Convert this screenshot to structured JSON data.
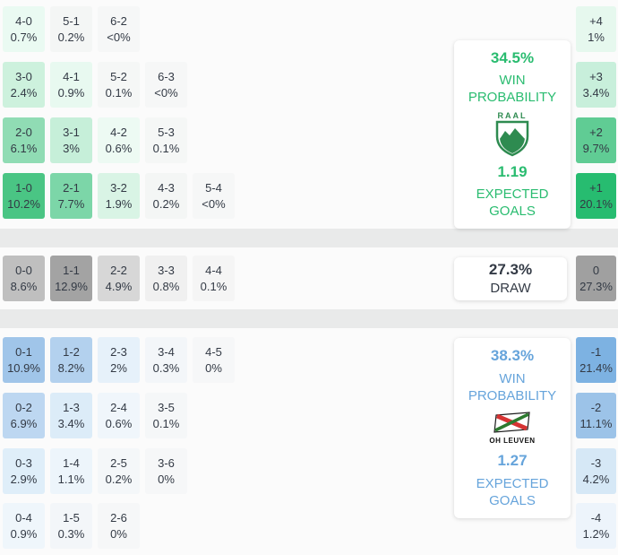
{
  "teams": {
    "home": "RAAL",
    "away": "OH LEUVEN"
  },
  "labels": {
    "win": "WIN",
    "probability": "PROBABILITY",
    "expected": "EXPECTED",
    "goals": "GOALS",
    "draw": "DRAW"
  },
  "colors": {
    "home_accent": "#2abc70",
    "away_accent": "#66a4db",
    "draw_accent": "#333a45",
    "divider": "#e9eaea",
    "cell_text": "#333a45"
  },
  "chart_data": {
    "type": "heatmap",
    "description": "Correct score probability matrix (home-away scorelines) with win/draw probability panels and goal-difference distribution column",
    "sections": {
      "home_win": {
        "team": "RAAL",
        "win_probability": 34.5,
        "win_probability_label": "34.5%",
        "expected_goals": 1.19,
        "expected_goals_label": "1.19",
        "cells": [
          {
            "score": "4-0",
            "pct": "0.7%",
            "value": 0.7,
            "row": 0,
            "col": 0,
            "bg": "#eafaf2"
          },
          {
            "score": "5-1",
            "pct": "0.2%",
            "value": 0.2,
            "row": 0,
            "col": 1,
            "bg": "#f4f6f5"
          },
          {
            "score": "6-2",
            "pct": "<0%",
            "value": 0,
            "row": 0,
            "col": 2,
            "bg": "#f6f7f7"
          },
          {
            "score": "3-0",
            "pct": "2.4%",
            "value": 2.4,
            "row": 1,
            "col": 0,
            "bg": "#cdf1dd"
          },
          {
            "score": "4-1",
            "pct": "0.9%",
            "value": 0.9,
            "row": 1,
            "col": 1,
            "bg": "#e8f9f0"
          },
          {
            "score": "5-2",
            "pct": "0.1%",
            "value": 0.1,
            "row": 1,
            "col": 2,
            "bg": "#f5f7f6"
          },
          {
            "score": "6-3",
            "pct": "<0%",
            "value": 0,
            "row": 1,
            "col": 3,
            "bg": "#f6f7f7"
          },
          {
            "score": "2-0",
            "pct": "6.1%",
            "value": 6.1,
            "row": 2,
            "col": 0,
            "bg": "#90dcb4"
          },
          {
            "score": "3-1",
            "pct": "3%",
            "value": 3,
            "row": 2,
            "col": 1,
            "bg": "#c6efd9"
          },
          {
            "score": "4-2",
            "pct": "0.6%",
            "value": 0.6,
            "row": 2,
            "col": 2,
            "bg": "#edfaf3"
          },
          {
            "score": "5-3",
            "pct": "0.1%",
            "value": 0.1,
            "row": 2,
            "col": 3,
            "bg": "#f5f7f6"
          },
          {
            "score": "1-0",
            "pct": "10.2%",
            "value": 10.2,
            "row": 3,
            "col": 0,
            "bg": "#4ac584"
          },
          {
            "score": "2-1",
            "pct": "7.7%",
            "value": 7.7,
            "row": 3,
            "col": 1,
            "bg": "#7cd6a8"
          },
          {
            "score": "3-2",
            "pct": "1.9%",
            "value": 1.9,
            "row": 3,
            "col": 2,
            "bg": "#d9f4e5"
          },
          {
            "score": "4-3",
            "pct": "0.2%",
            "value": 0.2,
            "row": 3,
            "col": 3,
            "bg": "#f4f6f5"
          },
          {
            "score": "5-4",
            "pct": "<0%",
            "value": 0,
            "row": 3,
            "col": 4,
            "bg": "#f6f7f7"
          }
        ]
      },
      "draw": {
        "probability": 27.3,
        "probability_label": "27.3%",
        "cells": [
          {
            "score": "0-0",
            "pct": "8.6%",
            "value": 8.6,
            "row": 0,
            "col": 0,
            "bg": "#bfbfbf"
          },
          {
            "score": "1-1",
            "pct": "12.9%",
            "value": 12.9,
            "row": 0,
            "col": 1,
            "bg": "#a3a3a3"
          },
          {
            "score": "2-2",
            "pct": "4.9%",
            "value": 4.9,
            "row": 0,
            "col": 2,
            "bg": "#d7d7d7"
          },
          {
            "score": "3-3",
            "pct": "0.8%",
            "value": 0.8,
            "row": 0,
            "col": 3,
            "bg": "#f0f0f0"
          },
          {
            "score": "4-4",
            "pct": "0.1%",
            "value": 0.1,
            "row": 0,
            "col": 4,
            "bg": "#f5f5f5"
          }
        ]
      },
      "away_win": {
        "team": "OH LEUVEN",
        "win_probability": 38.3,
        "win_probability_label": "38.3%",
        "expected_goals": 1.27,
        "expected_goals_label": "1.27",
        "cells": [
          {
            "score": "0-1",
            "pct": "10.9%",
            "value": 10.9,
            "row": 0,
            "col": 0,
            "bg": "#a0c5e9"
          },
          {
            "score": "1-2",
            "pct": "8.2%",
            "value": 8.2,
            "row": 0,
            "col": 1,
            "bg": "#b3d1ee"
          },
          {
            "score": "2-3",
            "pct": "2%",
            "value": 2,
            "row": 0,
            "col": 2,
            "bg": "#e6f1fa"
          },
          {
            "score": "3-4",
            "pct": "0.3%",
            "value": 0.3,
            "row": 0,
            "col": 3,
            "bg": "#f3f6f9"
          },
          {
            "score": "4-5",
            "pct": "0%",
            "value": 0,
            "row": 0,
            "col": 4,
            "bg": "#f6f7f8"
          },
          {
            "score": "0-2",
            "pct": "6.9%",
            "value": 6.9,
            "row": 1,
            "col": 0,
            "bg": "#bdd7f1"
          },
          {
            "score": "1-3",
            "pct": "3.4%",
            "value": 3.4,
            "row": 1,
            "col": 1,
            "bg": "#dcecf8"
          },
          {
            "score": "2-4",
            "pct": "0.6%",
            "value": 0.6,
            "row": 1,
            "col": 2,
            "bg": "#f0f6fb"
          },
          {
            "score": "3-5",
            "pct": "0.1%",
            "value": 0.1,
            "row": 1,
            "col": 3,
            "bg": "#f5f7f8"
          },
          {
            "score": "0-3",
            "pct": "2.9%",
            "value": 2.9,
            "row": 2,
            "col": 0,
            "bg": "#dfeef9"
          },
          {
            "score": "1-4",
            "pct": "1.1%",
            "value": 1.1,
            "row": 2,
            "col": 1,
            "bg": "#edf5fb"
          },
          {
            "score": "2-5",
            "pct": "0.2%",
            "value": 0.2,
            "row": 2,
            "col": 2,
            "bg": "#f4f7f9"
          },
          {
            "score": "3-6",
            "pct": "0%",
            "value": 0,
            "row": 2,
            "col": 3,
            "bg": "#f6f7f8"
          },
          {
            "score": "0-4",
            "pct": "0.9%",
            "value": 0.9,
            "row": 3,
            "col": 0,
            "bg": "#eff6fb"
          },
          {
            "score": "1-5",
            "pct": "0.3%",
            "value": 0.3,
            "row": 3,
            "col": 1,
            "bg": "#f3f6f9"
          },
          {
            "score": "2-6",
            "pct": "0%",
            "value": 0,
            "row": 3,
            "col": 2,
            "bg": "#f6f7f8"
          }
        ]
      },
      "goal_margins": [
        {
          "diff": "+4",
          "pct": "1%",
          "value": 1,
          "bg": "#e6f8ee"
        },
        {
          "diff": "+3",
          "pct": "3.4%",
          "value": 3.4,
          "bg": "#c8efdb"
        },
        {
          "diff": "+2",
          "pct": "9.7%",
          "value": 9.7,
          "bg": "#60cc94"
        },
        {
          "diff": "+1",
          "pct": "20.1%",
          "value": 20.1,
          "bg": "#27bc70"
        },
        {
          "diff": "0",
          "pct": "27.3%",
          "value": 27.3,
          "bg": "#a0a0a0"
        },
        {
          "diff": "-1",
          "pct": "21.4%",
          "value": 21.4,
          "bg": "#7db2e2"
        },
        {
          "diff": "-2",
          "pct": "11.1%",
          "value": 11.1,
          "bg": "#9cc3e8"
        },
        {
          "diff": "-3",
          "pct": "4.2%",
          "value": 4.2,
          "bg": "#d6e8f6"
        },
        {
          "diff": "-4",
          "pct": "1.2%",
          "value": 1.2,
          "bg": "#edf4fb"
        }
      ]
    }
  }
}
